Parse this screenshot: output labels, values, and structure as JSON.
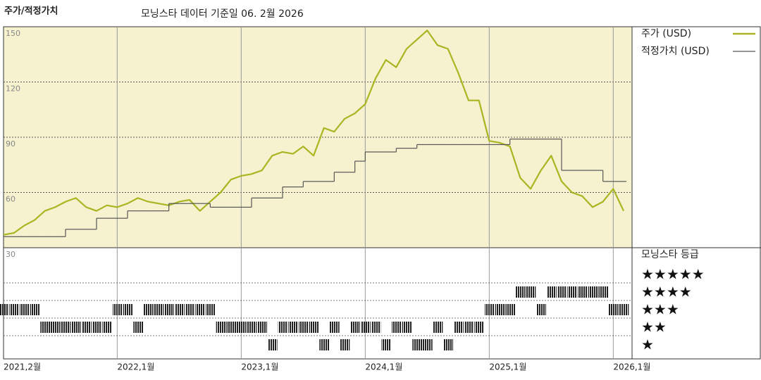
{
  "chart_data": {
    "type": "line",
    "title": "주가/적정가치",
    "subtitle": "모닝스타 데이터 기준일 06. 2월 2026",
    "x": [
      "2021-02",
      "2021-03",
      "2021-04",
      "2021-05",
      "2021-06",
      "2021-07",
      "2021-08",
      "2021-09",
      "2021-10",
      "2021-11",
      "2021-12",
      "2022-01",
      "2022-02",
      "2022-03",
      "2022-04",
      "2022-05",
      "2022-06",
      "2022-07",
      "2022-08",
      "2022-09",
      "2022-10",
      "2022-11",
      "2022-12",
      "2023-01",
      "2023-02",
      "2023-03",
      "2023-04",
      "2023-05",
      "2023-06",
      "2023-07",
      "2023-08",
      "2023-09",
      "2023-10",
      "2023-11",
      "2023-12",
      "2024-01",
      "2024-02",
      "2024-03",
      "2024-04",
      "2024-05",
      "2024-06",
      "2024-07",
      "2024-08",
      "2024-09",
      "2024-10",
      "2024-11",
      "2024-12",
      "2025-01",
      "2025-02",
      "2025-03",
      "2025-04",
      "2025-05",
      "2025-06",
      "2025-07",
      "2025-08",
      "2025-09",
      "2025-10",
      "2025-11",
      "2025-12",
      "2026-01",
      "2026-02"
    ],
    "series": [
      {
        "name": "주가 (USD)",
        "color": "#a9b521",
        "values": [
          37,
          38,
          42,
          45,
          50,
          52,
          55,
          57,
          52,
          50,
          53,
          52,
          54,
          57,
          55,
          54,
          53,
          55,
          56,
          50,
          55,
          60,
          67,
          69,
          70,
          72,
          80,
          82,
          81,
          85,
          80,
          95,
          93,
          100,
          103,
          108,
          122,
          132,
          128,
          138,
          143,
          148,
          140,
          138,
          125,
          110,
          110,
          88,
          87,
          85,
          68,
          62,
          72,
          80,
          66,
          60,
          58,
          52,
          55,
          62,
          50
        ]
      },
      {
        "name": "적정가치 (USD)",
        "color": "#555555",
        "step": true,
        "values": [
          36,
          36,
          36,
          36,
          36,
          36,
          40,
          40,
          40,
          46,
          46,
          46,
          50,
          50,
          50,
          50,
          54,
          54,
          54,
          54,
          52,
          52,
          52,
          52,
          57,
          57,
          57,
          63,
          63,
          66,
          66,
          66,
          71,
          71,
          77,
          82,
          82,
          82,
          84,
          84,
          86,
          86,
          86,
          86,
          86,
          86,
          86,
          86,
          86,
          89,
          89,
          89,
          89,
          89,
          72,
          72,
          72,
          72,
          66,
          66,
          66
        ]
      }
    ],
    "ylim": [
      30,
      150
    ],
    "yticks": [
      30,
      60,
      90,
      120,
      150
    ],
    "grid": true,
    "xticks": [
      {
        "value": "2021-02",
        "label": "2021,2월"
      },
      {
        "value": "2022-01",
        "label": "2022,1월"
      },
      {
        "value": "2023-01",
        "label": "2023,1월"
      },
      {
        "value": "2024-01",
        "label": "2024,1월"
      },
      {
        "value": "2025-01",
        "label": "2025,1월"
      },
      {
        "value": "2026-01",
        "label": "2026,1월"
      }
    ],
    "rating": {
      "title": "모닝스타 등급",
      "levels": [
        5,
        4,
        3,
        2,
        1
      ],
      "level_labels": [
        "★★★★★",
        "★★★★",
        "★★★",
        "★★",
        "★"
      ],
      "values": [
        3,
        3,
        3,
        3,
        2,
        2,
        2,
        2,
        2,
        2,
        2,
        3,
        3,
        2,
        3,
        3,
        3,
        3,
        3,
        3,
        3,
        2,
        2,
        2,
        2,
        2,
        1,
        2,
        2,
        2,
        2,
        1,
        2,
        1,
        2,
        2,
        2,
        1,
        2,
        2,
        1,
        1,
        2,
        1,
        2,
        2,
        2,
        3,
        3,
        3,
        4,
        4,
        3,
        4,
        4,
        4,
        4,
        4,
        4,
        3,
        3
      ]
    }
  }
}
